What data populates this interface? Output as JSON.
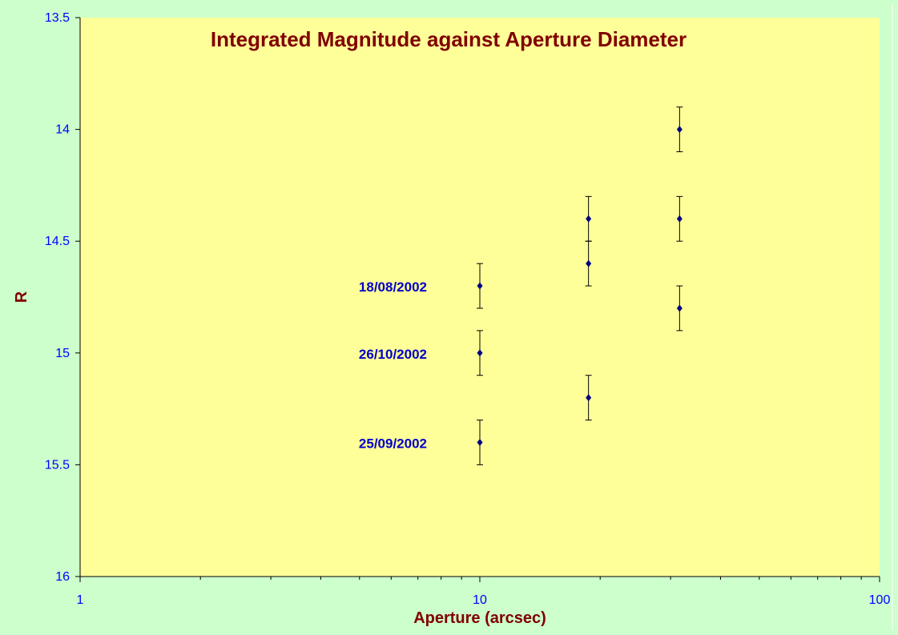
{
  "chart_data": {
    "type": "scatter",
    "title": "Integrated Magnitude against Aperture Diameter",
    "xlabel": "Aperture (arcsec)",
    "ylabel": "R",
    "x_scale": "log",
    "xlim": [
      1,
      100
    ],
    "ylim": [
      13.5,
      16
    ],
    "y_inverted": true,
    "x_tick_labels": [
      "1",
      "10",
      "100"
    ],
    "y_tick_labels": [
      "13.5",
      "14",
      "14.5",
      "15",
      "15.5",
      "16"
    ],
    "error_bar": 0.1,
    "points": [
      {
        "x": 10,
        "y": 14.7
      },
      {
        "x": 10,
        "y": 15.0
      },
      {
        "x": 10,
        "y": 15.4
      },
      {
        "x": 18.7,
        "y": 14.4
      },
      {
        "x": 18.7,
        "y": 14.6
      },
      {
        "x": 18.7,
        "y": 15.2
      },
      {
        "x": 31.6,
        "y": 14.0
      },
      {
        "x": 31.6,
        "y": 14.4
      },
      {
        "x": 31.6,
        "y": 14.8
      }
    ],
    "annotations": [
      {
        "text": "18/08/2002",
        "y": 14.7
      },
      {
        "text": "26/10/2002",
        "y": 15.0
      },
      {
        "text": "25/09/2002",
        "y": 15.4
      }
    ],
    "marker_color": "#000080",
    "grid": false
  },
  "colors": {
    "page_background": "#ccffcc",
    "plot_background": "#ffff99",
    "title": "#800000",
    "tick_labels": "#0000ff",
    "annotations": "#0000cc"
  }
}
